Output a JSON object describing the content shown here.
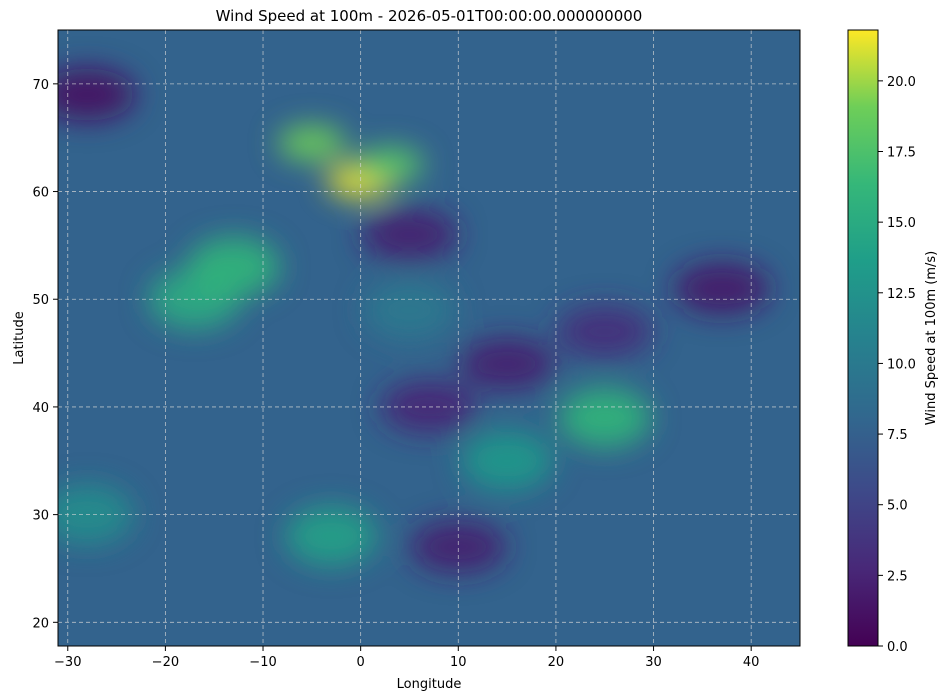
{
  "chart_data": {
    "type": "heatmap",
    "title": "Wind Speed at 100m - 2026-05-01T00:00:00.000000000",
    "xlabel": "Longitude",
    "ylabel": "Latitude",
    "xlim": [
      -31,
      45
    ],
    "ylim": [
      17.8,
      75
    ],
    "x_ticks": [
      "−30",
      "−20",
      "−10",
      "0",
      "10",
      "20",
      "30",
      "40"
    ],
    "x_tick_values": [
      -30,
      -20,
      -10,
      0,
      10,
      20,
      30,
      40
    ],
    "y_ticks": [
      "20",
      "30",
      "40",
      "50",
      "60",
      "70"
    ],
    "y_tick_values": [
      20,
      30,
      40,
      50,
      60,
      70
    ],
    "grid": true,
    "colormap": "viridis",
    "colorbar": {
      "label": "Wind Speed at 100m (m/s)",
      "min": 0,
      "max": 21.8,
      "ticks": [
        "0.0",
        "2.5",
        "5.0",
        "7.5",
        "10.0",
        "12.5",
        "15.0",
        "17.5",
        "20.0"
      ],
      "tick_values": [
        0,
        2.5,
        5,
        7.5,
        10,
        12.5,
        15,
        17.5,
        20
      ]
    },
    "hotspots": [
      {
        "lon": 0,
        "lat": 61,
        "value": 21.5
      },
      {
        "lon": -5,
        "lat": 64.5,
        "value": 19
      },
      {
        "lon": 3,
        "lat": 62.5,
        "value": 18
      },
      {
        "lon": -17,
        "lat": 50,
        "value": 15
      },
      {
        "lon": -13,
        "lat": 53,
        "value": 16
      },
      {
        "lon": 25,
        "lat": 39,
        "value": 16
      },
      {
        "lon": 15,
        "lat": 35,
        "value": 13
      },
      {
        "lon": -3,
        "lat": 28,
        "value": 14
      },
      {
        "lon": -28,
        "lat": 30,
        "value": 12
      },
      {
        "lon": 5,
        "lat": 49,
        "value": 10
      }
    ],
    "lowspots": [
      {
        "lon": 5,
        "lat": 56,
        "value": 2
      },
      {
        "lon": -28,
        "lat": 69,
        "value": 1
      },
      {
        "lon": 15,
        "lat": 44,
        "value": 2
      },
      {
        "lon": 7,
        "lat": 40,
        "value": 2.5
      },
      {
        "lon": 37,
        "lat": 51,
        "value": 1.5
      },
      {
        "lon": 25,
        "lat": 47,
        "value": 3
      },
      {
        "lon": 10,
        "lat": 27,
        "value": 2
      }
    ]
  }
}
